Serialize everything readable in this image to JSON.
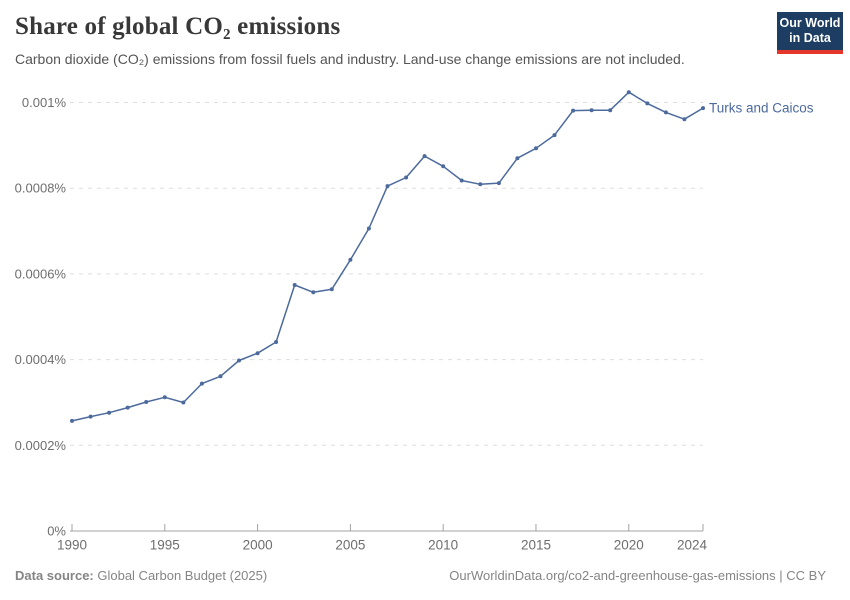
{
  "header": {
    "title": "Share of global CO₂ emissions",
    "subtitle": "Carbon dioxide (CO₂) emissions from fossil fuels and industry. Land-use change emissions are not included.",
    "logo": {
      "line1": "Our World",
      "line2": "in Data",
      "bg_color": "#1d3d63",
      "accent_color": "#e5362c"
    }
  },
  "chart_data": {
    "type": "line",
    "title": "Share of global CO₂ emissions",
    "xlabel": "",
    "ylabel": "",
    "grid": "dashed-horizontal",
    "legend_position": "end-of-line-label",
    "xlim": [
      1990,
      2024
    ],
    "ylim": [
      0,
      0.00105
    ],
    "x_ticks": [
      1990,
      1995,
      2000,
      2005,
      2010,
      2015,
      2020,
      2024
    ],
    "y_ticks": [
      {
        "value": 0,
        "label": "0%"
      },
      {
        "value": 0.0002,
        "label": "0.0002%"
      },
      {
        "value": 0.0004,
        "label": "0.0004%"
      },
      {
        "value": 0.0006,
        "label": "0.0006%"
      },
      {
        "value": 0.0008,
        "label": "0.0008%"
      },
      {
        "value": 0.001,
        "label": "0.001%"
      }
    ],
    "series": [
      {
        "name": "Turks and Caicos",
        "color": "#4c6a9c",
        "x": [
          1990,
          1991,
          1992,
          1993,
          1994,
          1995,
          1996,
          1997,
          1998,
          1999,
          2000,
          2001,
          2002,
          2003,
          2004,
          2005,
          2006,
          2007,
          2008,
          2009,
          2010,
          2011,
          2012,
          2013,
          2014,
          2015,
          2016,
          2017,
          2018,
          2019,
          2020,
          2021,
          2022,
          2023,
          2024
        ],
        "values": [
          0.000257,
          0.000267,
          0.000276,
          0.000288,
          0.000301,
          0.000312,
          0.0003,
          0.000344,
          0.000361,
          0.000398,
          0.000415,
          0.000441,
          0.000574,
          0.000557,
          0.000564,
          0.000633,
          0.000706,
          0.000805,
          0.000825,
          0.000875,
          0.000851,
          0.000818,
          0.000809,
          0.000812,
          0.00087,
          0.000893,
          0.000924,
          0.000981,
          0.000982,
          0.000982,
          0.001024,
          0.000998,
          0.000977,
          0.000961,
          0.000987
        ]
      }
    ],
    "colors": {
      "line": "#4c6a9c",
      "gridline": "#dedede",
      "axis": "#a3a3a3",
      "tick_label": "#6e6e6e"
    }
  },
  "footer": {
    "datasource_label": "Data source:",
    "datasource_value": " Global Carbon Budget (2025)",
    "link": "OurWorldinData.org/co2-and-greenhouse-gas-emissions | CC BY"
  }
}
